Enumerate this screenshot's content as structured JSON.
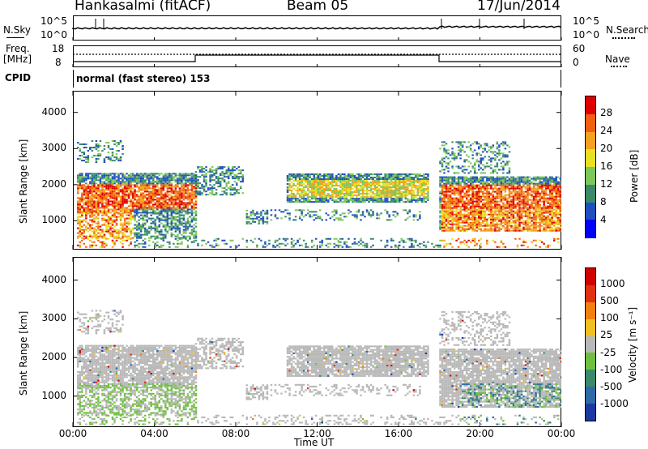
{
  "header": {
    "station": "Hankasalmi (fitACF)",
    "beam": "Beam 05",
    "date": "17/Jun/2014"
  },
  "noise_panel": {
    "left_label": "N.Sky",
    "left_ticks": [
      "10^5",
      "10^0"
    ],
    "right_label": "N.Search",
    "right_ticks": [
      "10^5",
      "10^0"
    ]
  },
  "freq_panel": {
    "left_label_top": "Freq.",
    "left_label_unit": "[MHz]",
    "left_ticks": [
      "18",
      "8"
    ],
    "right_label": "Nave",
    "right_ticks": [
      "60",
      "0"
    ]
  },
  "cpid": {
    "label": "CPID",
    "value": "normal (fast stereo) 153"
  },
  "chart_data": [
    {
      "type": "heatmap",
      "name": "power",
      "ylabel": "Slant Range [km]",
      "yticks": [
        "4000",
        "3000",
        "2000",
        "1000"
      ],
      "ylim": [
        200,
        4600
      ],
      "xlim": [
        "00:00",
        "24:00"
      ],
      "colorbar": {
        "label": "Power [dB]",
        "ticks": [
          "28",
          "24",
          "20",
          "16",
          "12",
          "8",
          "4"
        ],
        "colors": [
          "#0000ff",
          "#1f4fbf",
          "#3a8a6a",
          "#7cc85a",
          "#e8e020",
          "#f5a020",
          "#f06010",
          "#e00000"
        ]
      }
    },
    {
      "type": "heatmap",
      "name": "velocity",
      "ylabel": "Slant Range [km]",
      "yticks": [
        "4000",
        "3000",
        "2000",
        "1000"
      ],
      "ylim": [
        200,
        4600
      ],
      "xlim": [
        "00:00",
        "24:00"
      ],
      "xlabel": "Time UT",
      "xticks": [
        "00:00",
        "04:00",
        "08:00",
        "12:00",
        "16:00",
        "20:00",
        "00:00"
      ],
      "colorbar": {
        "label": "Velocity [m s⁻¹]",
        "ticks": [
          "1000",
          "500",
          "100",
          "25",
          "-25",
          "-100",
          "-500",
          "-1000"
        ],
        "colors": [
          "#1a3aa0",
          "#2e6aa8",
          "#3a8a6a",
          "#70c040",
          "#b8b8b8",
          "#f0c020",
          "#f08010",
          "#e03010",
          "#d00000"
        ]
      }
    }
  ]
}
